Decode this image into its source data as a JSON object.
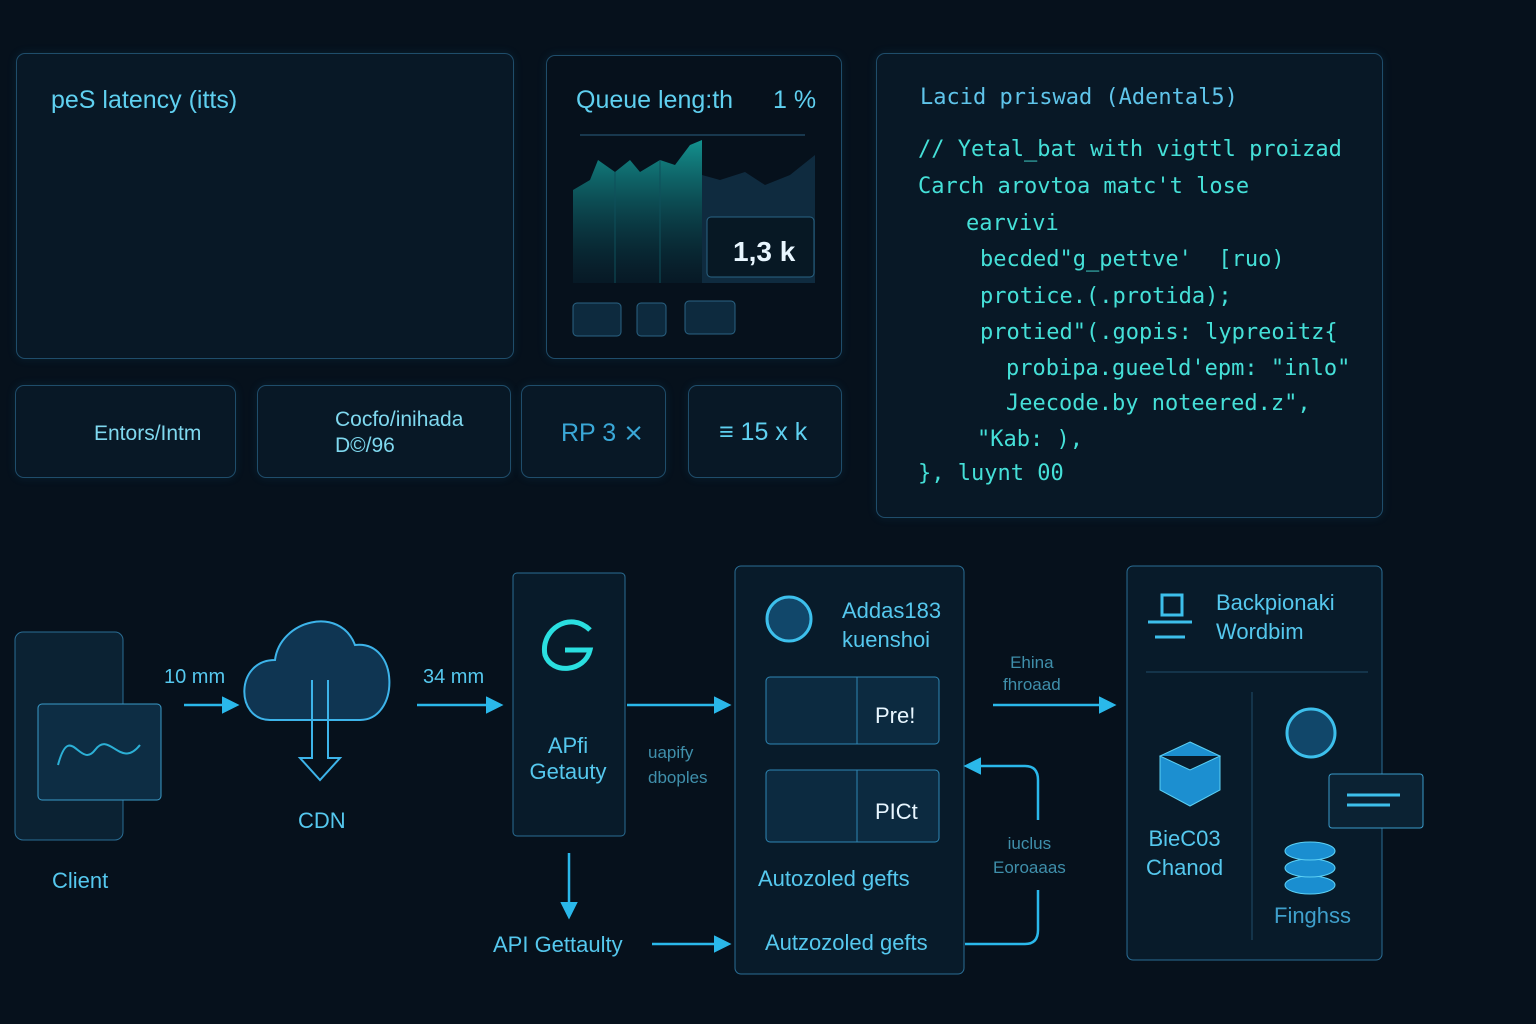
{
  "latency_panel": {
    "title": "peS latency (itts)"
  },
  "queue_panel": {
    "title": "Queue leng:th",
    "badge": "1 %",
    "value": "1,3 k"
  },
  "stat_cards": [
    {
      "lines": [
        "Entors/Intm"
      ]
    },
    {
      "lines": [
        "Cocfo/inihada",
        "D©/96"
      ]
    },
    {
      "lines": [
        "RP 3 ⨯"
      ]
    },
    {
      "lines": [
        "15 x k"
      ]
    }
  ],
  "code_panel": {
    "title": "Lacid priswad (Adental5)",
    "lines": [
      "// Yetal_bat with vigttl proizad",
      "Carch arovtoa matc't lose",
      "earvivi",
      "becded\"g_pettve'  [ruo)",
      "protice.(.protida);",
      "protied\"(.gopis: lypreoitz{",
      "probipa.gueeld'epm: \"inlo\"",
      "Jeecode.by noteered.z\",",
      "\"Kab: ),",
      "}, luynt 00"
    ]
  },
  "diagram": {
    "nodes": {
      "client": "Client",
      "cdn": "CDN",
      "gateway": [
        "APfi",
        "Getauty"
      ],
      "service": [
        "Addas183",
        "kuenshoi"
      ],
      "cell_a": "Pre!",
      "cell_b": "PICt",
      "service_footer": "Autozoled gefts",
      "bottom_gateway": "API Gettaulty",
      "bottom_service": "Autzozoled gefts",
      "backend": [
        "Backpionaki",
        "Wordbim"
      ],
      "storage_a": [
        "BieC03",
        "Chanod"
      ],
      "storage_b": "Finghss"
    },
    "edges": {
      "client_cdn": "10 mm",
      "cdn_gateway": "34 mm",
      "gateway_service": [
        "uapify",
        "dboples"
      ],
      "service_backend": [
        "Ehina",
        "fhroaad"
      ],
      "return": [
        "iuclus",
        "Eoroaaas"
      ]
    }
  }
}
